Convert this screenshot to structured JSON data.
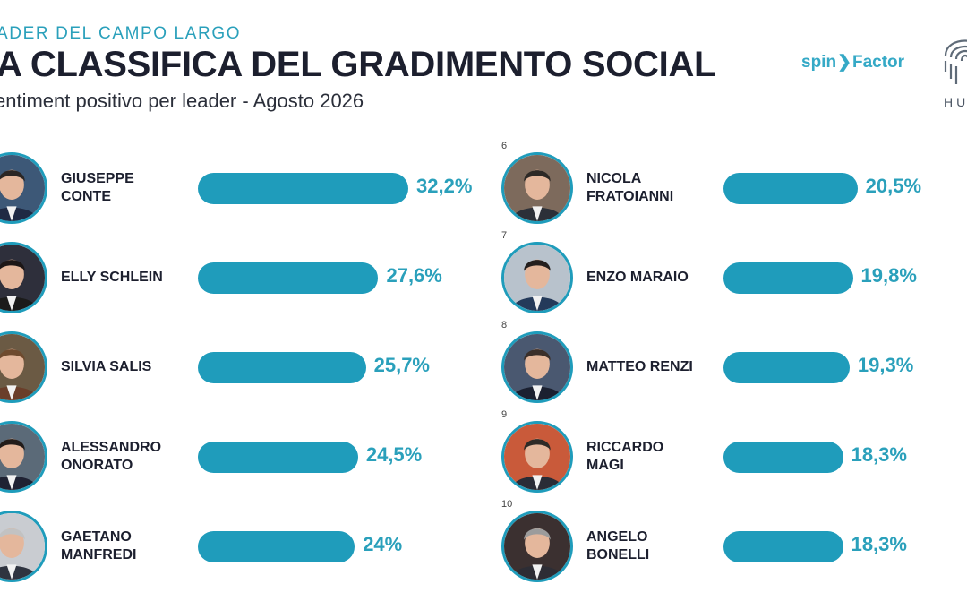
{
  "header": {
    "kicker": "ADER DEL CAMPO LARGO",
    "title": "A CLASSIFICA DEL GRADIMENTO SOCIAL",
    "subtitle": "entiment positivo per leader - Agosto 2026",
    "brand_left": "spin",
    "brand_right": "Factor",
    "hum_text": "HUM"
  },
  "colors": {
    "accent": "#1f9cbb",
    "value_text": "#2aa0bb",
    "title": "#1c1f2e"
  },
  "chart_data": {
    "type": "bar",
    "orientation": "horizontal",
    "categories": [
      "GIUSEPPE\nCONTE",
      "ELLY SCHLEIN",
      "SILVIA SALIS",
      "ALESSANDRO\nONORATO",
      "GAETANO\nMANFREDI",
      "NICOLA\nFRATOIANNI",
      "ENZO MARAIO",
      "MATTEO RENZI",
      "RICCARDO\nMAGI",
      "ANGELO\nBONELLI"
    ],
    "values": [
      32.2,
      27.6,
      25.7,
      24.5,
      24,
      20.5,
      19.8,
      19.3,
      18.3,
      18.3
    ],
    "value_labels": [
      "32,2%",
      "27,6%",
      "25,7%",
      "24,5%",
      "24%",
      "20,5%",
      "19,8%",
      "19,3%",
      "18,3%",
      "18,3%"
    ],
    "rank_labels": [
      "",
      "",
      "",
      "",
      "",
      "6",
      "7",
      "8",
      "9",
      "10"
    ],
    "title": "A CLASSIFICA DEL GRADIMENTO SOCIAL",
    "xlabel": "",
    "ylabel": "",
    "grid": false,
    "legend": "none"
  }
}
